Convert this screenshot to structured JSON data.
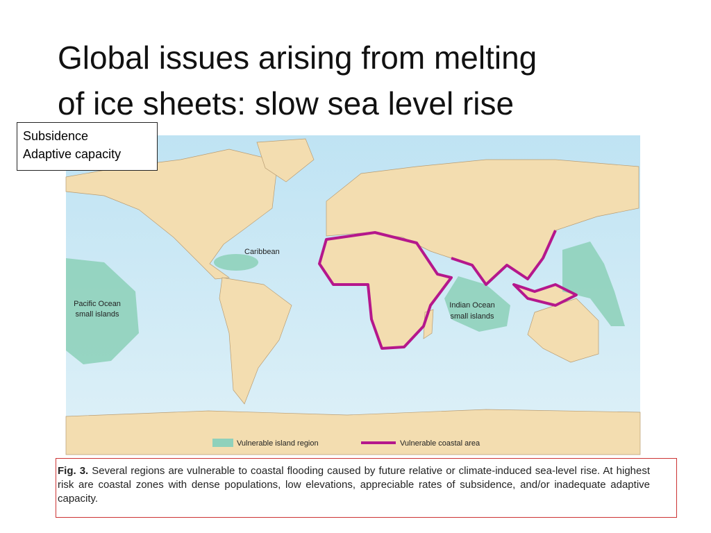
{
  "header": {
    "title_lines": [
      "Global issues arising from melting",
      "of ice sheets:  slow sea level rise"
    ]
  },
  "callout": {
    "items": [
      "Subsidence",
      "Adaptive capacity"
    ]
  },
  "map": {
    "labels": {
      "caribbean": "Caribbean",
      "pacific": [
        "Pacific Ocean",
        "small islands"
      ],
      "indian": [
        "Indian Ocean",
        "small islands"
      ]
    },
    "legend": [
      "Vulnerable island region",
      "Vulnerable coastal area"
    ]
  },
  "caption": {
    "label": "Fig. 3.",
    "text": "Several regions are vulnerable to coastal flooding caused by future relative or climate-induced sea-level rise. At highest risk are coastal zones with dense populations, low elevations, appreciable rates of subsidence, and/or inadequate adaptive capacity."
  }
}
